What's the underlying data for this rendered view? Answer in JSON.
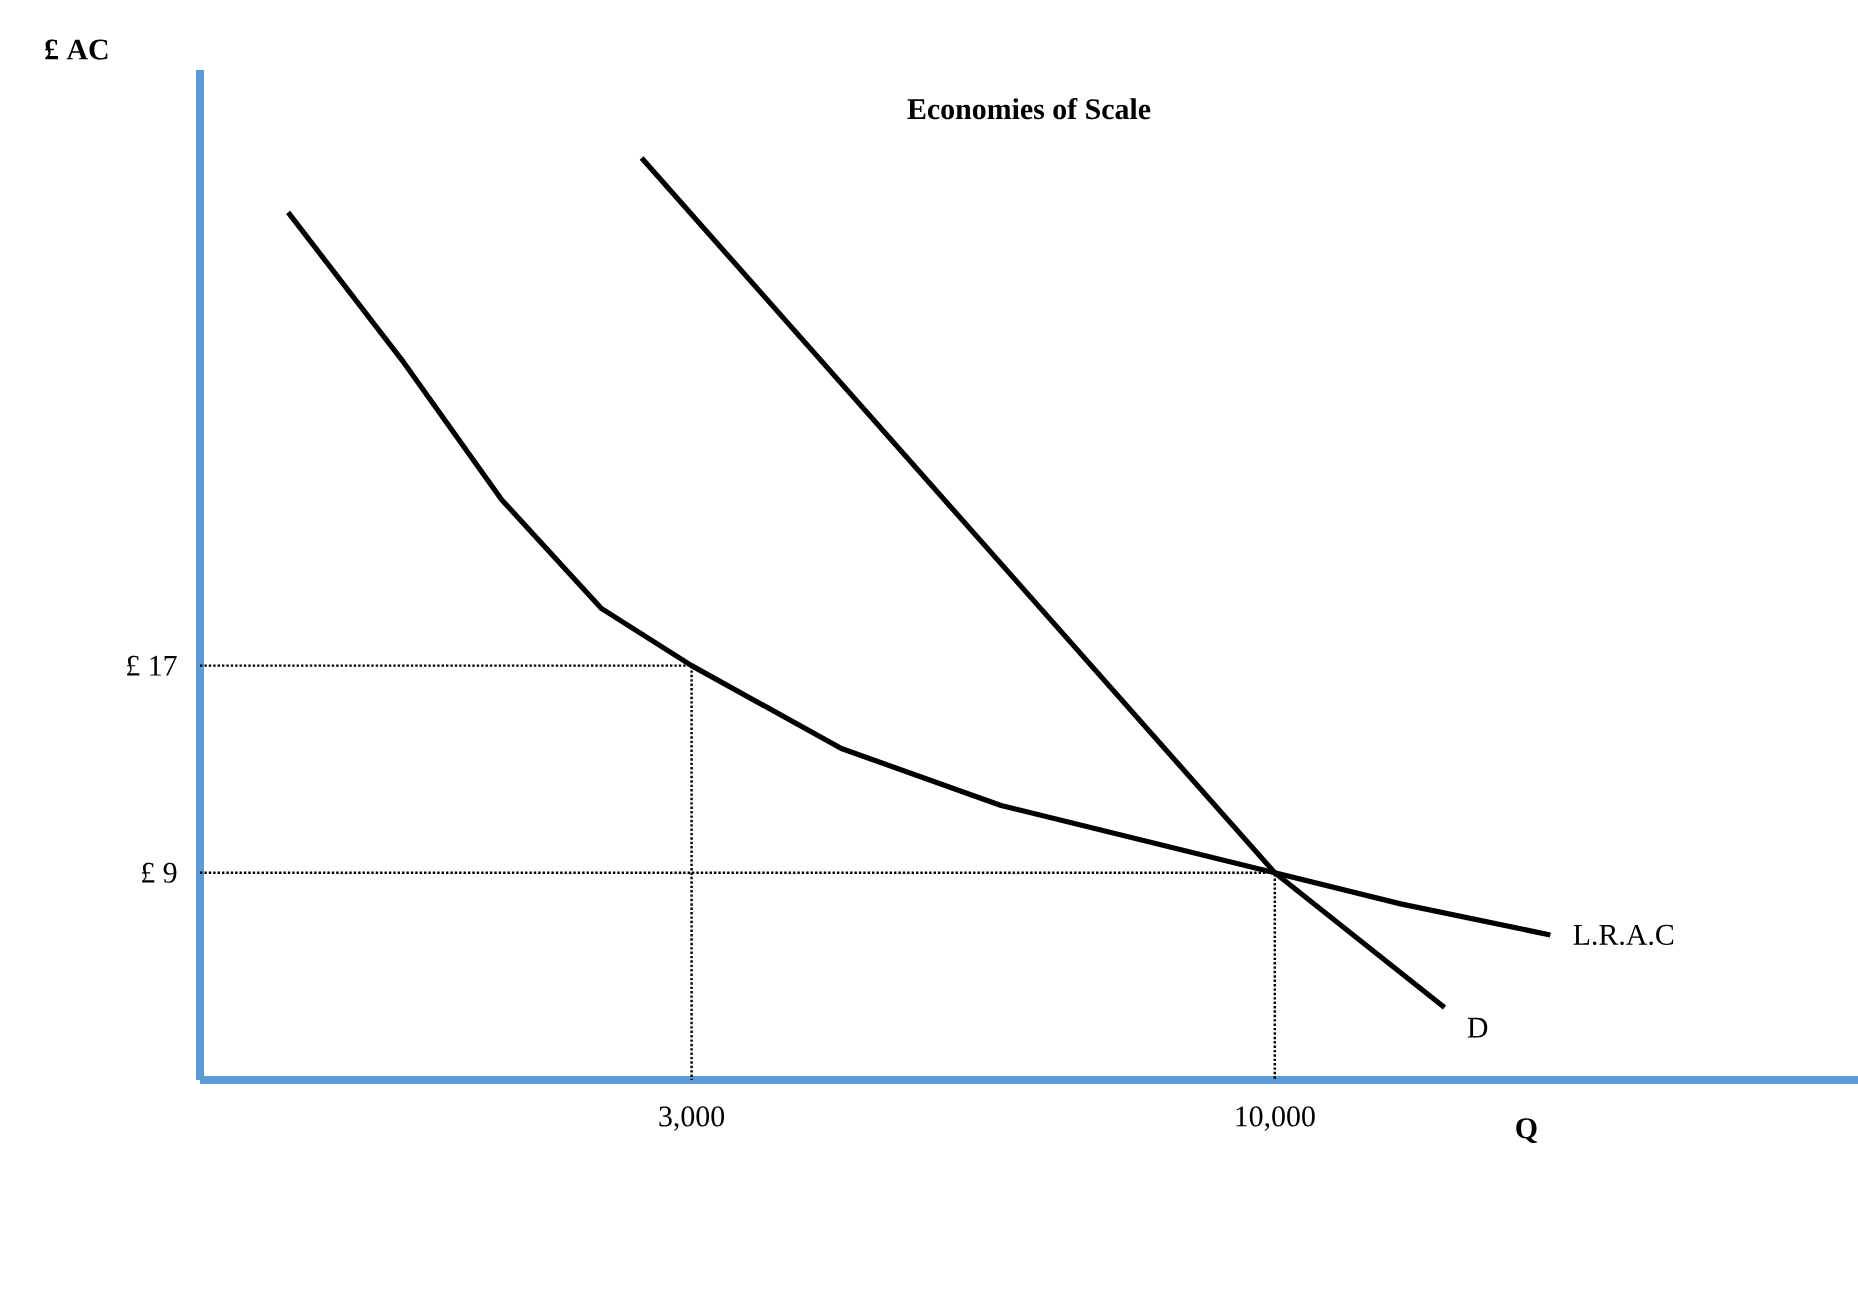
{
  "chart_data": {
    "type": "line",
    "title": "Economies of Scale",
    "xlabel": "Q",
    "ylabel": "£ AC",
    "xlim": [
      -2900,
      17000
    ],
    "ylim": [
      1,
      40
    ],
    "xticks": [
      {
        "value": 3000,
        "label": "3,000"
      },
      {
        "value": 10000,
        "label": "10,000"
      }
    ],
    "yticks": [
      {
        "value": 17,
        "label": "£ 17"
      },
      {
        "value": 9,
        "label": "£ 9"
      }
    ],
    "marker": "none",
    "series": [
      {
        "name": "L.R.A.C",
        "color": "#000000",
        "line_style": "solid",
        "x": [
          -1842,
          -476,
          723,
          1921,
          3000,
          4798,
          6715,
          10000,
          11510,
          13307
        ],
        "values": [
          34.5,
          28.8,
          23.4,
          19.2,
          17,
          13.8,
          11.6,
          9,
          7.8,
          6.6
        ]
      },
      {
        "name": "D",
        "color": "#000000",
        "line_style": "solid",
        "x": [
          2401,
          10000,
          12037
        ],
        "values": [
          36.6,
          9,
          3.8
        ]
      },
      {
        "type": "line",
        "color": "#000000",
        "line_style": "dotted",
        "x": [
          -2900,
          3000,
          3000
        ],
        "values": [
          17,
          17,
          1
        ]
      },
      {
        "type": "line",
        "color": "#000000",
        "line_style": "dotted",
        "x": [
          -2900,
          10000,
          10000
        ],
        "values": [
          9,
          9,
          1
        ]
      }
    ]
  }
}
